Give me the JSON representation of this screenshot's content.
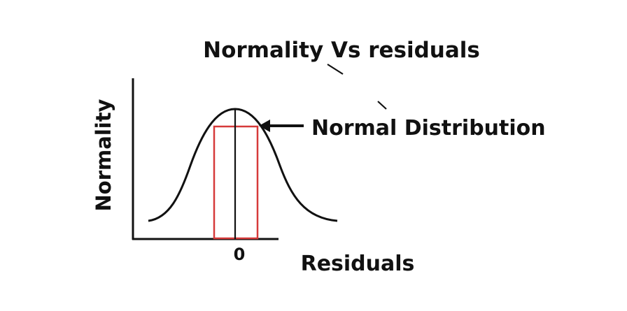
{
  "title": "Normality Vs residuals",
  "y_axis_label": "Normality",
  "x_axis_label": "Residuals",
  "x_tick_zero": "0",
  "annotation": "Normal Distribution",
  "colors": {
    "curve": "#111111",
    "axes": "#111111",
    "highlight_box": "#d63a3a",
    "background": "#ffffff"
  },
  "icons": [
    "arrow-left-icon"
  ]
}
